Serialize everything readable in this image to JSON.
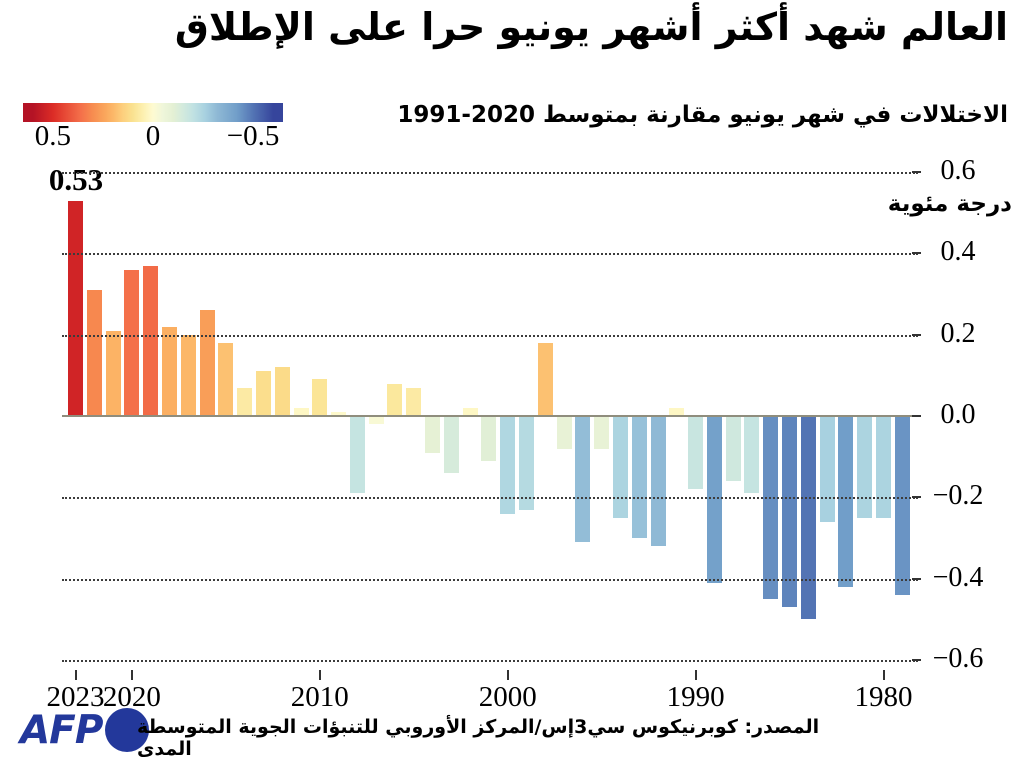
{
  "header": {
    "title": "العالم شهد أكثر أشهر يونيو حرا على الإطلاق",
    "subtitle": "الاختلالات في شهر يونيو مقارنة بمتوسط 2020-1991"
  },
  "legend": {
    "domain": [
      0.65,
      -0.65
    ],
    "labels": [
      {
        "text": "0.5",
        "pos_pct": 11.5
      },
      {
        "text": "0",
        "pos_pct": 50
      },
      {
        "text": "−0.5",
        "pos_pct": 88.5
      }
    ]
  },
  "chart_data": {
    "type": "bar",
    "title": "العالم شهد أكثر أشهر يونيو حرا على الإطلاق",
    "subtitle": "الاختلالات في شهر يونيو مقارنة بمتوسط 2020-1991",
    "unit_label": "درجة مئوية",
    "x": [
      2023,
      2022,
      2021,
      2020,
      2019,
      2018,
      2017,
      2016,
      2015,
      2014,
      2013,
      2012,
      2011,
      2010,
      2009,
      2008,
      2007,
      2006,
      2005,
      2004,
      2003,
      2002,
      2001,
      2000,
      1999,
      1998,
      1997,
      1996,
      1995,
      1994,
      1993,
      1992,
      1991,
      1990,
      1989,
      1988,
      1987,
      1986,
      1985,
      1984,
      1983,
      1982,
      1981,
      1980,
      1979
    ],
    "values": [
      0.53,
      0.31,
      0.21,
      0.36,
      0.37,
      0.22,
      0.2,
      0.26,
      0.18,
      0.07,
      0.11,
      0.12,
      0.02,
      0.09,
      0.01,
      -0.19,
      -0.02,
      0.08,
      0.07,
      -0.09,
      -0.14,
      0.02,
      -0.11,
      -0.24,
      -0.23,
      0.18,
      -0.08,
      -0.31,
      -0.08,
      -0.25,
      -0.3,
      -0.32,
      0.02,
      -0.18,
      -0.41,
      -0.16,
      -0.19,
      -0.45,
      -0.47,
      -0.5,
      -0.26,
      -0.42,
      -0.25,
      -0.25,
      -0.44
    ],
    "peak_annotation": {
      "year": 2023,
      "label": "0.53"
    },
    "ylim": [
      -0.6,
      0.6
    ],
    "yticks": [
      0.6,
      0.4,
      0.2,
      0.0,
      -0.2,
      -0.4,
      -0.6
    ],
    "ytick_labels": [
      "0.6",
      "0.4",
      "0.2",
      "0.0",
      "−0.2",
      "−0.4",
      "−0.6"
    ],
    "xticks": [
      {
        "year": 2023,
        "label": "2023"
      },
      {
        "year": 2020,
        "label": "2020"
      },
      {
        "year": 2010,
        "label": "2010"
      },
      {
        "year": 2000,
        "label": "2000"
      },
      {
        "year": 1990,
        "label": "1990"
      },
      {
        "year": 1980,
        "label": "1980"
      }
    ],
    "grid": true,
    "legend_position": "top-left",
    "colormap": [
      {
        "v": 0.6,
        "c": "#b41325"
      },
      {
        "v": 0.5,
        "c": "#dc2c26"
      },
      {
        "v": 0.36,
        "c": "#f4704a"
      },
      {
        "v": 0.3,
        "c": "#f78d50"
      },
      {
        "v": 0.24,
        "c": "#faa65c"
      },
      {
        "v": 0.2,
        "c": "#fcb768"
      },
      {
        "v": 0.15,
        "c": "#fdd07e"
      },
      {
        "v": 0.1,
        "c": "#fae291"
      },
      {
        "v": 0.05,
        "c": "#fdf0b0"
      },
      {
        "v": 0.0,
        "c": "#fefbd2"
      },
      {
        "v": -0.05,
        "c": "#eff6da"
      },
      {
        "v": -0.1,
        "c": "#e4f0d4"
      },
      {
        "v": -0.15,
        "c": "#d3eadd"
      },
      {
        "v": -0.2,
        "c": "#c1e2e2"
      },
      {
        "v": -0.26,
        "c": "#a8d1e0"
      },
      {
        "v": -0.32,
        "c": "#8fb9d5"
      },
      {
        "v": -0.42,
        "c": "#719ec9"
      },
      {
        "v": -0.5,
        "c": "#5374b4"
      },
      {
        "v": -0.6,
        "c": "#36459c"
      }
    ]
  },
  "footer": {
    "logo_text": "AFP",
    "source": "المصدر: كوبرنيكوس سي3إس/المركز الأوروبي للتنبؤات الجوية المتوسطة المدى"
  },
  "colors": {
    "background": "#ffffff",
    "text": "#000000",
    "grid": "#3c3c3c",
    "zero_line": "#8f8d7d",
    "tick": "#333333",
    "logo": "#23389b"
  }
}
